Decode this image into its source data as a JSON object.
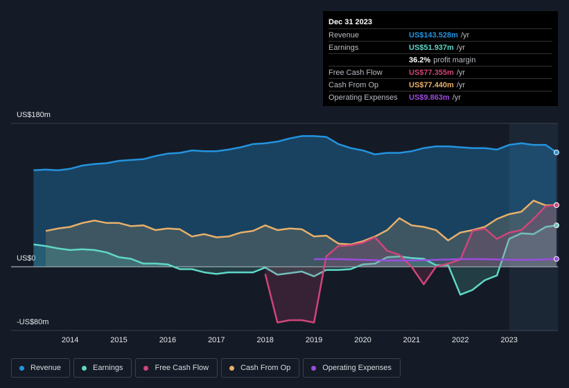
{
  "chart_data": {
    "type": "line",
    "ylim": [
      -80,
      180
    ],
    "yticks": [
      {
        "value": 180,
        "label": "US$180m"
      },
      {
        "value": 0,
        "label": "US$0"
      },
      {
        "value": -80,
        "label": "-US$80m"
      }
    ],
    "xlim": [
      2012.79,
      2024.0
    ],
    "xticks": [
      2014,
      2015,
      2016,
      2017,
      2018,
      2019,
      2020,
      2021,
      2022,
      2023
    ],
    "grid": true,
    "series": [
      {
        "name": "Revenue",
        "color": "#2394df",
        "x": [
          2013.25,
          2013.5,
          2013.75,
          2014,
          2014.25,
          2014.5,
          2014.75,
          2015,
          2015.25,
          2015.5,
          2015.75,
          2016,
          2016.25,
          2016.5,
          2016.75,
          2017,
          2017.25,
          2017.5,
          2017.75,
          2018,
          2018.25,
          2018.5,
          2018.75,
          2019,
          2019.25,
          2019.5,
          2019.75,
          2020,
          2020.25,
          2020.5,
          2020.75,
          2021,
          2021.25,
          2021.5,
          2021.75,
          2022,
          2022.25,
          2022.5,
          2022.75,
          2023,
          2023.25,
          2023.5,
          2023.75,
          2023.97
        ],
        "values": [
          121,
          122,
          121,
          123,
          127,
          129,
          130,
          133,
          134,
          135,
          139,
          142,
          143,
          146,
          145,
          145,
          147,
          150,
          154,
          155,
          157,
          161,
          164,
          164,
          163,
          154,
          149,
          146,
          141,
          143,
          143,
          145,
          149,
          151,
          151,
          150,
          149,
          149,
          147,
          153,
          155,
          153,
          153,
          143.528
        ]
      },
      {
        "name": "Earnings",
        "color": "#5fd8c8",
        "x": [
          2013.25,
          2013.5,
          2013.75,
          2014,
          2014.25,
          2014.5,
          2014.75,
          2015,
          2015.25,
          2015.5,
          2015.75,
          2016,
          2016.25,
          2016.5,
          2016.75,
          2017,
          2017.25,
          2017.5,
          2017.75,
          2018,
          2018.25,
          2018.5,
          2018.75,
          2019,
          2019.25,
          2019.5,
          2019.75,
          2020,
          2020.25,
          2020.5,
          2020.75,
          2021,
          2021.25,
          2021.5,
          2021.75,
          2022,
          2022.25,
          2022.5,
          2022.75,
          2023,
          2023.25,
          2023.5,
          2023.75,
          2023.97
        ],
        "values": [
          28,
          26,
          23,
          21,
          22,
          21,
          18,
          12,
          10,
          4,
          4,
          3,
          -3,
          -3,
          -7,
          -9,
          -7,
          -7,
          -7,
          -1,
          -10,
          -8,
          -6,
          -12,
          -4,
          -4,
          -3,
          3,
          4,
          12,
          13,
          11,
          10,
          2,
          2,
          -35,
          -29,
          -17,
          -11,
          35,
          42,
          41,
          50,
          51.937
        ]
      },
      {
        "name": "Free Cash Flow",
        "color": "#d0457a",
        "x": [
          2018,
          2018.25,
          2018.5,
          2018.75,
          2019,
          2019.25,
          2019.5,
          2019.75,
          2020,
          2020.25,
          2020.5,
          2020.75,
          2021,
          2021.25,
          2021.5,
          2021.75,
          2022,
          2022.25,
          2022.5,
          2022.75,
          2023,
          2023.25,
          2023.5,
          2023.75,
          2023.97
        ],
        "values": [
          -9,
          -70,
          -67,
          -67,
          -70,
          13,
          26,
          27,
          30,
          37,
          20,
          15,
          0,
          -22,
          0,
          4,
          9,
          45,
          48,
          35,
          43,
          46,
          60,
          76,
          77.355
        ]
      },
      {
        "name": "Cash From Op",
        "color": "#e8b06a",
        "x": [
          2013.5,
          2013.75,
          2014,
          2014.25,
          2014.5,
          2014.75,
          2015,
          2015.25,
          2015.5,
          2015.75,
          2016,
          2016.25,
          2016.5,
          2016.75,
          2017,
          2017.25,
          2017.5,
          2017.75,
          2018,
          2018.25,
          2018.5,
          2018.75,
          2019,
          2019.25,
          2019.5,
          2019.75,
          2020,
          2020.25,
          2020.5,
          2020.75,
          2021,
          2021.25,
          2021.5,
          2021.75,
          2022,
          2022.25,
          2022.5,
          2022.75,
          2023,
          2023.25,
          2023.5,
          2023.75,
          2023.97
        ],
        "values": [
          45,
          48,
          50,
          55,
          58,
          55,
          55,
          51,
          52,
          46,
          48,
          47,
          38,
          41,
          37,
          38,
          43,
          45,
          52,
          46,
          48,
          47,
          38,
          39,
          29,
          28,
          32,
          38,
          46,
          61,
          52,
          50,
          46,
          33,
          43,
          46,
          50,
          60,
          66,
          69,
          83,
          77,
          77.44
        ]
      },
      {
        "name": "Operating Expenses",
        "color": "#9b4ce0",
        "x": [
          2019,
          2019.5,
          2020,
          2020.5,
          2021,
          2021.5,
          2022,
          2022.5,
          2023,
          2023.5,
          2023.97
        ],
        "values": [
          9.6,
          9.6,
          8.7,
          7.8,
          7.8,
          8.7,
          9.6,
          9.6,
          8.7,
          8.7,
          9.863
        ]
      }
    ],
    "tooltip": {
      "date": "Dec 31 2023",
      "rows": [
        {
          "label": "Revenue",
          "value": "US$143.528m",
          "unit": "/yr"
        },
        {
          "label": "Earnings",
          "value": "US$51.937m",
          "unit": "/yr"
        },
        {
          "label": "Free Cash Flow",
          "value": "US$77.355m",
          "unit": "/yr"
        },
        {
          "label": "Cash From Op",
          "value": "US$77.440m",
          "unit": "/yr"
        },
        {
          "label": "Operating Expenses",
          "value": "US$9.863m",
          "unit": "/yr"
        }
      ],
      "margin": "36.2%",
      "margin_label": "profit margin"
    }
  }
}
